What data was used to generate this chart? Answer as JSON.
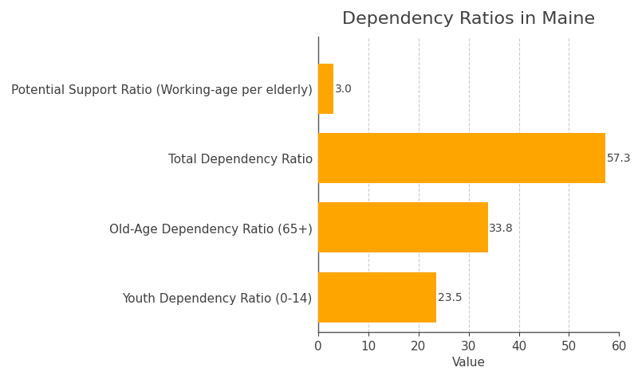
{
  "title": "Dependency Ratios in Maine",
  "categories": [
    "Potential Support Ratio (Working-age per elderly)",
    "Total Dependency Ratio",
    "Old-Age Dependency Ratio (65+)",
    "Youth Dependency Ratio (0-14)"
  ],
  "values": [
    3.0,
    57.3,
    33.8,
    23.5
  ],
  "bar_color": "#FFA500",
  "xlabel": "Value",
  "xlim": [
    0,
    60
  ],
  "xticks": [
    0,
    10,
    20,
    30,
    40,
    50,
    60
  ],
  "title_fontsize": 16,
  "label_fontsize": 11,
  "value_fontsize": 10,
  "background_color": "#ffffff",
  "grid_color": "#cccccc",
  "spine_color": "#555555",
  "text_color": "#404040"
}
